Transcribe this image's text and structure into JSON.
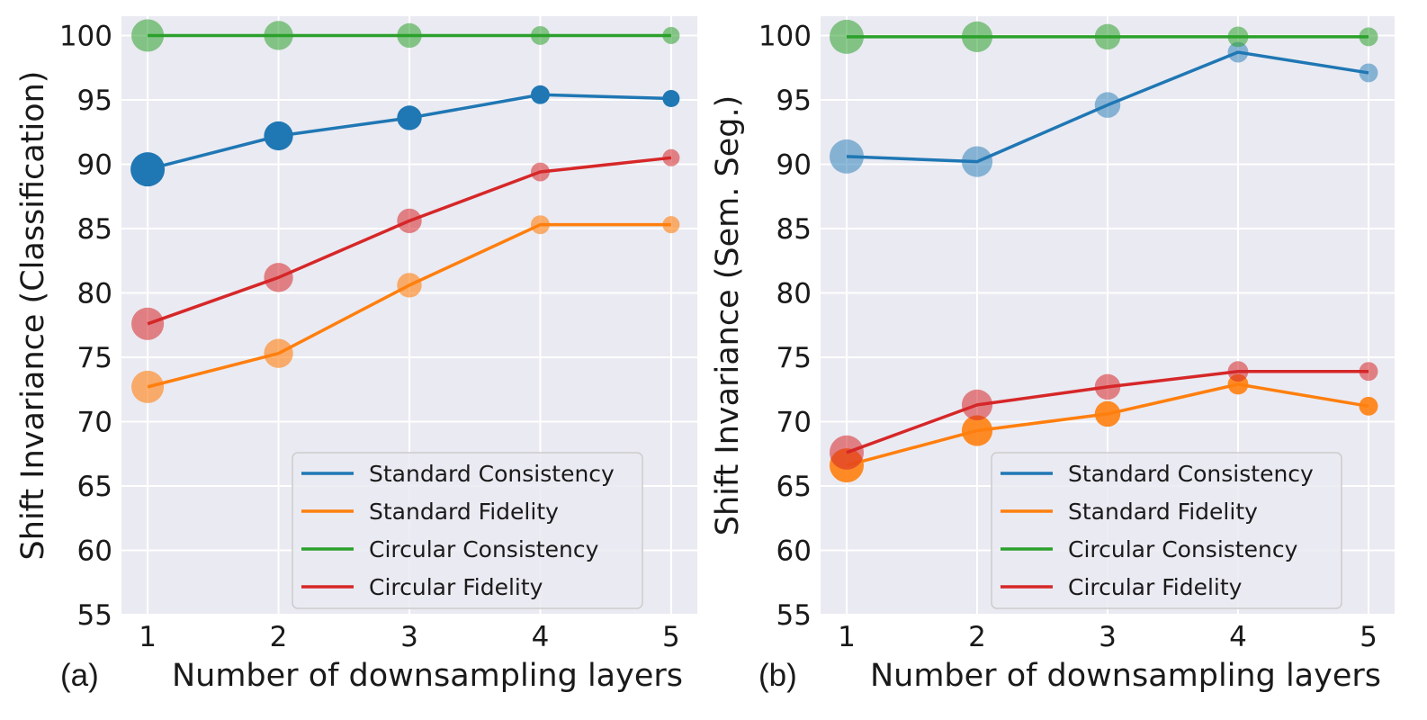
{
  "chart_data": [
    {
      "type": "line",
      "panel_label": "(a)",
      "xlabel": "Number of downsampling layers",
      "ylabel": "Shift Invariance (Classification)",
      "ylim": [
        55,
        101.5
      ],
      "xlim": [
        0.8,
        5.2
      ],
      "x": [
        1,
        2,
        3,
        4,
        5
      ],
      "x_ticks": [
        "1",
        "2",
        "3",
        "4",
        "5"
      ],
      "y_ticks": [
        "55",
        "60",
        "65",
        "70",
        "75",
        "80",
        "85",
        "90",
        "95",
        "100"
      ],
      "grid": true,
      "legend_position": "lower-right",
      "series": [
        {
          "name": "Standard Consistency",
          "color": "#1f77b4",
          "values": [
            89.6,
            92.2,
            93.6,
            95.4,
            95.1
          ],
          "marker_size": [
            1.0,
            0.85,
            0.72,
            0.55,
            0.5
          ],
          "marker_alpha": 1.0
        },
        {
          "name": "Standard Fidelity",
          "color": "#ff7f0e",
          "values": [
            72.7,
            75.3,
            80.6,
            85.3,
            85.3
          ],
          "marker_size": [
            0.95,
            0.85,
            0.72,
            0.55,
            0.5
          ],
          "marker_alpha": 0.6
        },
        {
          "name": "Circular Consistency",
          "color": "#2ca02c",
          "values": [
            100,
            100,
            100,
            100,
            100
          ],
          "marker_size": [
            0.95,
            0.85,
            0.72,
            0.55,
            0.5
          ],
          "marker_alpha": 0.55
        },
        {
          "name": "Circular Fidelity",
          "color": "#d62728",
          "values": [
            77.6,
            81.2,
            85.6,
            89.4,
            90.5
          ],
          "marker_size": [
            0.95,
            0.85,
            0.72,
            0.55,
            0.5
          ],
          "marker_alpha": 0.55
        }
      ]
    },
    {
      "type": "line",
      "panel_label": "(b)",
      "xlabel": "Number of downsampling layers",
      "ylabel": "Shift Invariance (Sem. Seg.)",
      "ylim": [
        55,
        101.5
      ],
      "xlim": [
        0.8,
        5.2
      ],
      "x": [
        1,
        2,
        3,
        4,
        5
      ],
      "x_ticks": [
        "1",
        "2",
        "3",
        "4",
        "5"
      ],
      "y_ticks": [
        "55",
        "60",
        "65",
        "70",
        "75",
        "80",
        "85",
        "90",
        "95",
        "100"
      ],
      "grid": true,
      "legend_position": "lower-right",
      "series": [
        {
          "name": "Standard Consistency",
          "color": "#1f77b4",
          "values": [
            90.6,
            90.2,
            94.6,
            98.7,
            97.1
          ],
          "marker_size": [
            1.0,
            0.9,
            0.75,
            0.6,
            0.55
          ],
          "marker_alpha": 0.5
        },
        {
          "name": "Standard Fidelity",
          "color": "#ff7f0e",
          "values": [
            66.6,
            69.3,
            70.6,
            72.9,
            71.2
          ],
          "marker_size": [
            1.0,
            0.9,
            0.75,
            0.6,
            0.55
          ],
          "marker_alpha": 0.9
        },
        {
          "name": "Circular Consistency",
          "color": "#2ca02c",
          "values": [
            99.9,
            99.9,
            99.9,
            99.9,
            99.9
          ],
          "marker_size": [
            1.0,
            0.9,
            0.75,
            0.6,
            0.55
          ],
          "marker_alpha": 0.55
        },
        {
          "name": "Circular Fidelity",
          "color": "#d62728",
          "values": [
            67.6,
            71.3,
            72.7,
            73.9,
            73.9
          ],
          "marker_size": [
            1.0,
            0.9,
            0.75,
            0.6,
            0.55
          ],
          "marker_alpha": 0.55
        }
      ]
    }
  ]
}
